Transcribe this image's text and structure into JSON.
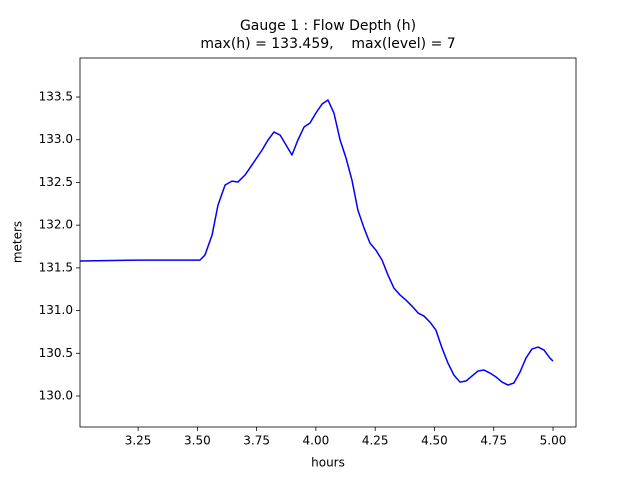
{
  "chart_data": {
    "type": "line",
    "title": "Gauge 1 : Flow Depth (h)",
    "subtitle": "max(h) = 133.459,    max(level) = 7",
    "xlabel": "hours",
    "ylabel": "meters",
    "x": [
      3.005,
      3.258,
      3.511,
      3.532,
      3.562,
      3.587,
      3.617,
      3.646,
      3.671,
      3.701,
      3.73,
      3.773,
      3.798,
      3.823,
      3.849,
      3.874,
      3.899,
      3.924,
      3.95,
      3.975,
      4.0,
      4.026,
      4.051,
      4.076,
      4.102,
      4.127,
      4.152,
      4.177,
      4.203,
      4.228,
      4.253,
      4.279,
      4.304,
      4.329,
      4.355,
      4.38,
      4.405,
      4.431,
      4.456,
      4.481,
      4.506,
      4.532,
      4.557,
      4.582,
      4.608,
      4.633,
      4.658,
      4.684,
      4.709,
      4.734,
      4.76,
      4.785,
      4.81,
      4.835,
      4.861,
      4.886,
      4.911,
      4.937,
      4.962,
      4.987,
      5.0
    ],
    "series": [
      {
        "name": "h",
        "color": "#0000ff",
        "values": [
          131.58,
          131.591,
          131.591,
          131.65,
          131.884,
          132.235,
          132.47,
          132.516,
          132.505,
          132.587,
          132.704,
          132.88,
          132.997,
          133.09,
          133.055,
          132.938,
          132.821,
          132.997,
          133.149,
          133.196,
          133.313,
          133.418,
          133.465,
          133.313,
          132.997,
          132.786,
          132.528,
          132.177,
          131.966,
          131.79,
          131.708,
          131.591,
          131.416,
          131.263,
          131.182,
          131.123,
          131.053,
          130.971,
          130.936,
          130.865,
          130.772,
          130.561,
          130.385,
          130.245,
          130.163,
          130.175,
          130.234,
          130.293,
          130.304,
          130.269,
          130.222,
          130.163,
          130.128,
          130.152,
          130.281,
          130.444,
          130.549,
          130.573,
          130.538,
          130.444,
          130.409
        ]
      }
    ],
    "xlim": [
      3.005,
      5.097
    ],
    "ylim": [
      129.637,
      133.957
    ],
    "xticks": [
      3.25,
      {
        "value": 3.5,
        "label": "3.50"
      },
      3.75,
      {
        "value": 4,
        "label": "4.00"
      },
      4.25,
      {
        "value": 4.5,
        "label": "4.50"
      },
      4.75,
      {
        "value": 5,
        "label": "5.00"
      }
    ],
    "yticks": [
      {
        "value": 130,
        "label": "130.0"
      },
      130.5,
      {
        "value": 131,
        "label": "131.0"
      },
      131.5,
      {
        "value": 132,
        "label": "132.0"
      },
      132.5,
      {
        "value": 133,
        "label": "133.0"
      },
      133.5
    ]
  }
}
